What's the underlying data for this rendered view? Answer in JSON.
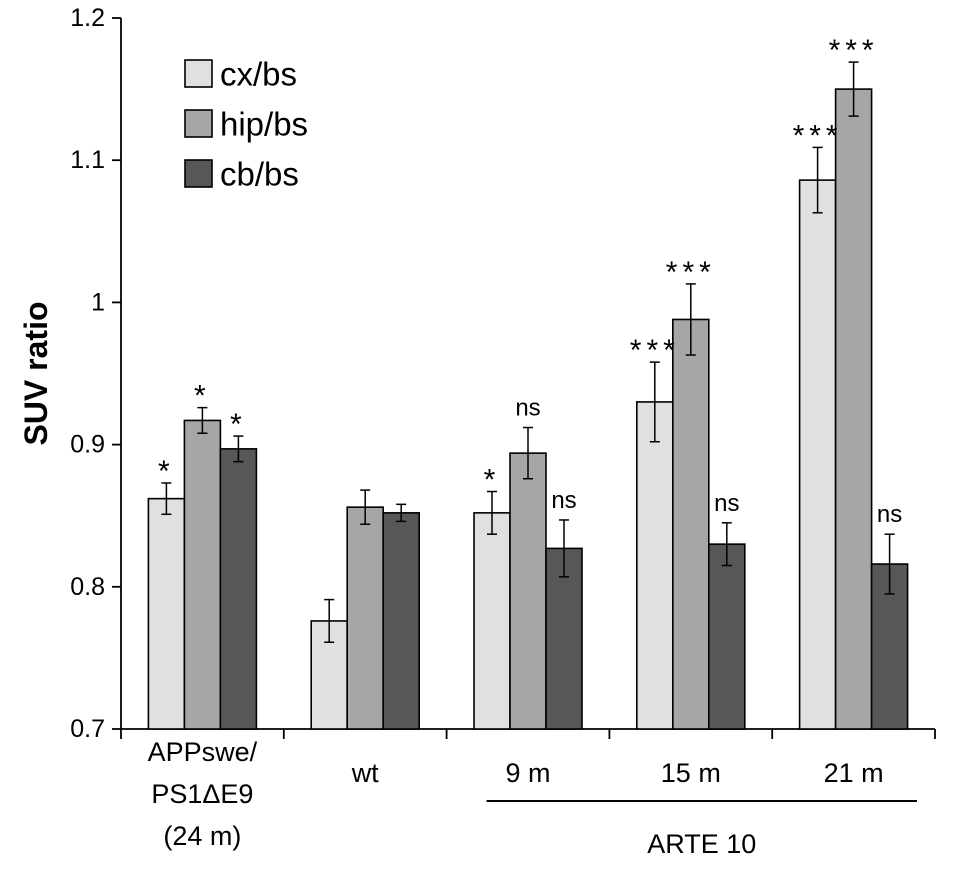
{
  "chart_data": {
    "type": "bar",
    "ylabel": "SUV ratio",
    "ylim": [
      0.7,
      1.2
    ],
    "yticks": [
      0.7,
      0.8,
      0.9,
      1,
      1.1,
      1.2
    ],
    "ytick_labels": [
      "0.7",
      "0.8",
      "0.9",
      "1",
      "1.1",
      "1.2"
    ],
    "categories": [
      {
        "lines": [
          "APPswe/",
          "PS1ΔE9",
          "(24 m)"
        ]
      },
      {
        "lines": [
          "wt"
        ]
      },
      {
        "lines": [
          "9 m"
        ]
      },
      {
        "lines": [
          "15 m"
        ]
      },
      {
        "lines": [
          "21 m"
        ]
      }
    ],
    "group_label": {
      "text": "ARTE 10",
      "categories": [
        2,
        4
      ]
    },
    "series": [
      {
        "name": "cx/bs",
        "color": "#e0e0e0",
        "values": [
          0.862,
          0.776,
          0.852,
          0.93,
          1.086
        ],
        "errors": [
          0.011,
          0.015,
          0.015,
          0.028,
          0.023
        ],
        "significance": [
          "*",
          "",
          "*",
          "***",
          "***"
        ]
      },
      {
        "name": "hip/bs",
        "color": "#a6a6a6",
        "values": [
          0.917,
          0.856,
          0.894,
          0.988,
          1.15
        ],
        "errors": [
          0.009,
          0.012,
          0.018,
          0.025,
          0.019
        ],
        "significance": [
          "*",
          "",
          "ns",
          "***",
          "***"
        ]
      },
      {
        "name": "cb/bs",
        "color": "#575757",
        "values": [
          0.897,
          0.852,
          0.827,
          0.83,
          0.816
        ],
        "errors": [
          0.009,
          0.006,
          0.02,
          0.015,
          0.021
        ],
        "significance": [
          "*",
          "",
          "ns",
          "ns",
          "ns"
        ]
      }
    ],
    "legend": {
      "position": "top-left"
    },
    "grid": false
  }
}
